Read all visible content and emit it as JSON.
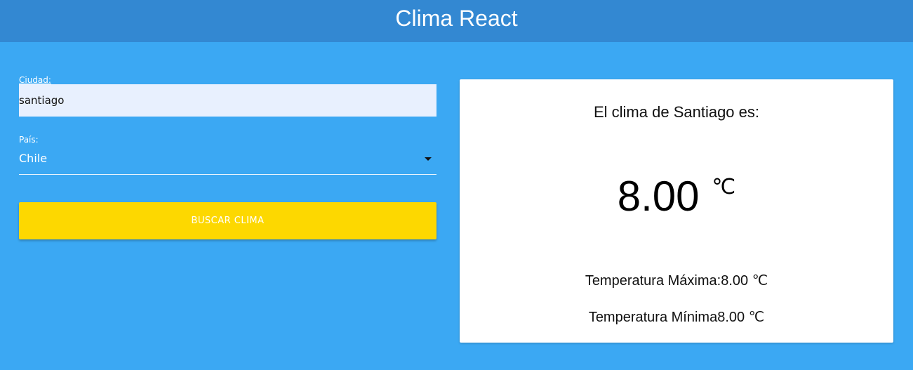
{
  "header": {
    "title": "Clima React"
  },
  "form": {
    "city_label": "Ciudad:",
    "city_value": "santiago",
    "country_label": "País:",
    "country_value": "Chile",
    "search_label": "BUSCAR CLIMA"
  },
  "result": {
    "title": "El clima de Santiago es:",
    "temp": "8.00",
    "unit": "℃",
    "max_label": "Temperatura Máxima:",
    "max_value": "8.00",
    "min_label": "Temperatura Mínima",
    "min_value": "8.00"
  },
  "colors": {
    "background": "#3ba8f3",
    "app_bar": "#3388d2",
    "button": "#fdd800",
    "input_background": "#e8f0fe"
  },
  "icons": {
    "dropdown": "chevron-down-icon"
  }
}
